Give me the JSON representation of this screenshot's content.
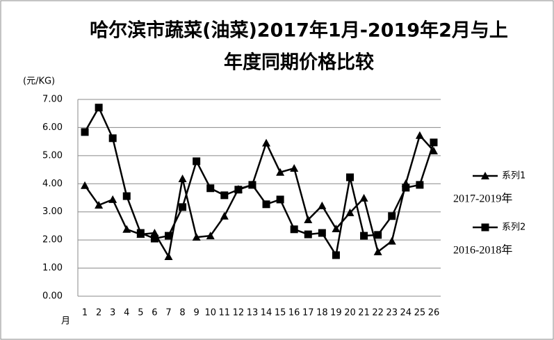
{
  "chart_data": {
    "type": "line",
    "title": [
      "哈尔滨市蔬菜(油菜)2017年1月-2019年2月与上",
      "年度同期价格比较"
    ],
    "y_label": "(元/KG)",
    "x_label": "月",
    "categories": [
      "1",
      "2",
      "3",
      "4",
      "5",
      "6",
      "7",
      "8",
      "9",
      "10",
      "11",
      "12",
      "13",
      "14",
      "15",
      "16",
      "17",
      "18",
      "19",
      "20",
      "21",
      "22",
      "23",
      "24",
      "25",
      "26"
    ],
    "series": [
      {
        "name": "系列1",
        "note": "2017-2019年",
        "marker": "triangle",
        "color": "#000000",
        "values": [
          3.94,
          3.24,
          3.44,
          2.38,
          2.2,
          2.25,
          1.41,
          4.18,
          2.1,
          2.15,
          2.85,
          3.81,
          3.96,
          5.45,
          4.41,
          4.55,
          2.72,
          3.22,
          2.4,
          2.97,
          3.49,
          1.58,
          1.96,
          4.01,
          5.72,
          5.17
        ]
      },
      {
        "name": "系列2",
        "note": "2016-2018年",
        "marker": "square",
        "color": "#000000",
        "values": [
          5.84,
          6.71,
          5.62,
          3.56,
          2.25,
          2.05,
          2.15,
          3.17,
          4.8,
          3.84,
          3.59,
          3.79,
          3.96,
          3.27,
          3.44,
          2.38,
          2.2,
          2.25,
          1.46,
          4.23,
          2.15,
          2.18,
          2.85,
          3.86,
          3.96,
          5.47
        ]
      }
    ],
    "ylim": [
      0,
      7
    ],
    "yticks": [
      {
        "value": 0,
        "label": "0.00"
      },
      {
        "value": 1,
        "label": "1.00"
      },
      {
        "value": 2,
        "label": "2.00"
      },
      {
        "value": 3,
        "label": "3.00"
      },
      {
        "value": 4,
        "label": "4.00"
      },
      {
        "value": 5,
        "label": "5.00"
      },
      {
        "value": 6,
        "label": "6.00"
      },
      {
        "value": 7,
        "label": "7.00"
      }
    ],
    "grid": true
  }
}
